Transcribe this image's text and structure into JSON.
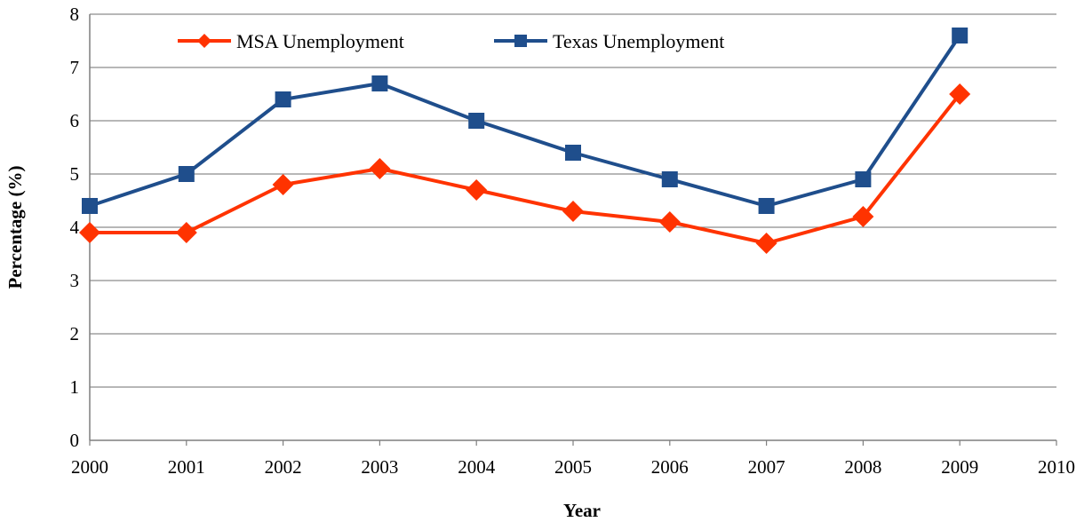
{
  "chart_data": {
    "type": "line",
    "title": "",
    "xlabel": "Year",
    "ylabel": "Percentage  (%)",
    "xlim": [
      2000,
      2010
    ],
    "ylim": [
      0,
      8
    ],
    "x_ticks": [
      "2000",
      "2001",
      "2002",
      "2003",
      "2004",
      "2005",
      "2006",
      "2007",
      "2008",
      "2009",
      "2010"
    ],
    "y_ticks": [
      "0",
      "1",
      "2",
      "3",
      "4",
      "5",
      "6",
      "7",
      "8"
    ],
    "grid": "horizontal",
    "legend_position": "top-left",
    "series": [
      {
        "name": "MSA Unemployment",
        "color": "#ff3300",
        "marker": "diamond",
        "x": [
          2000,
          2001,
          2002,
          2003,
          2004,
          2005,
          2006,
          2007,
          2008,
          2009
        ],
        "values": [
          3.9,
          3.9,
          4.8,
          5.1,
          4.7,
          4.3,
          4.1,
          3.7,
          4.2,
          6.5
        ]
      },
      {
        "name": "Texas Unemployment",
        "color": "#1f4e8c",
        "marker": "square",
        "x": [
          2000,
          2001,
          2002,
          2003,
          2004,
          2005,
          2006,
          2007,
          2008,
          2009
        ],
        "values": [
          4.4,
          5.0,
          6.4,
          6.7,
          6.0,
          5.4,
          4.9,
          4.4,
          4.9,
          7.6
        ]
      }
    ]
  }
}
